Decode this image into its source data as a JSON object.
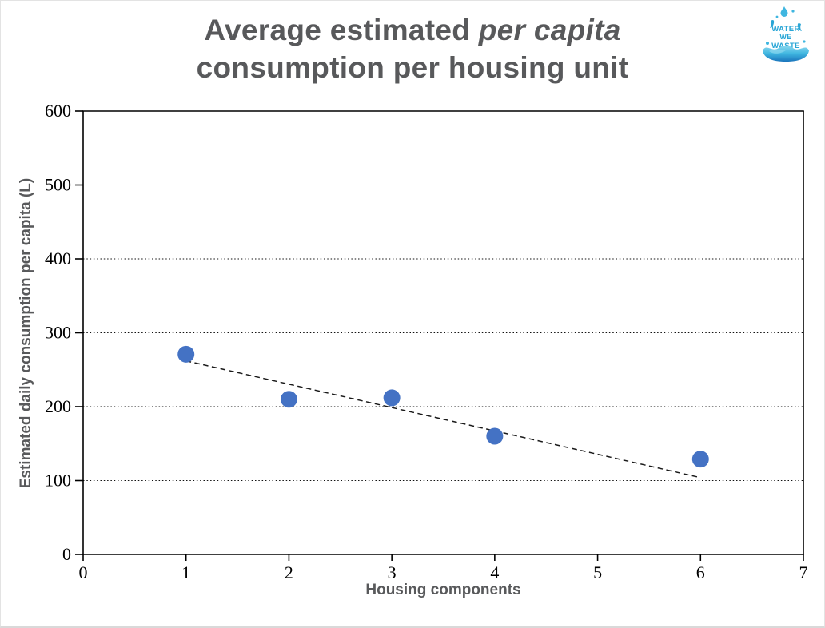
{
  "title": {
    "line1_regular": "Average estimated",
    "line1_italic": "per capita",
    "line2": "consumption per housing unit"
  },
  "logo": {
    "word1": "WATER",
    "word2": "WE",
    "word3": "WASTE"
  },
  "chart_data": {
    "type": "scatter",
    "title": "Average estimated per capita consumption per housing unit",
    "xlabel": "Housing components",
    "ylabel": "Estimated daily consumption per capita (L)",
    "xlim": [
      0,
      7
    ],
    "ylim": [
      0,
      600
    ],
    "xticks": [
      0,
      1,
      2,
      3,
      4,
      5,
      6,
      7
    ],
    "yticks": [
      0,
      100,
      200,
      300,
      400,
      500,
      600
    ],
    "grid": "horizontal-dotted",
    "legend": "none",
    "points": [
      {
        "x": 1,
        "y": 271
      },
      {
        "x": 2,
        "y": 210
      },
      {
        "x": 3,
        "y": 212
      },
      {
        "x": 4,
        "y": 160
      },
      {
        "x": 6,
        "y": 129
      }
    ],
    "trendline": {
      "style": "dashed-linear",
      "x1": 1.0,
      "y1": 262,
      "x2": 6.0,
      "y2": 104
    },
    "marker_color": "#4472C4",
    "axis_color": "#000000",
    "title_color": "#58595b"
  }
}
